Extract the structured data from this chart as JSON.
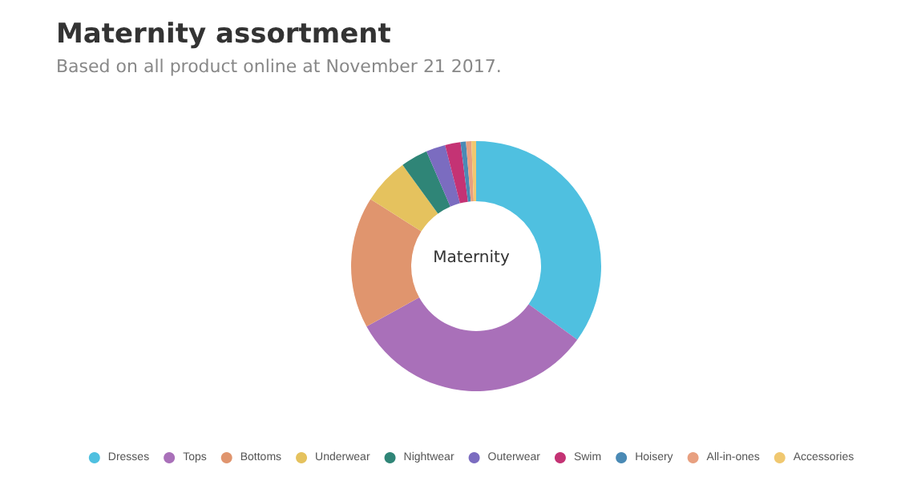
{
  "chart_data": {
    "type": "donut",
    "title": "Maternity assortment",
    "subtitle": "Based on all product online at November 21 2017.",
    "annotations": [
      "Maternity"
    ],
    "categories": [
      "Dresses",
      "Tops",
      "Bottoms",
      "Underwear",
      "Nightwear",
      "Outerwear",
      "Swim",
      "Hoisery",
      "All-in-ones",
      "Accessories"
    ],
    "values": [
      35,
      32,
      17,
      6,
      3.5,
      2.5,
      2,
      0.7,
      0.7,
      0.6
    ],
    "colors": [
      "#4fc0e0",
      "#a970b9",
      "#e0956e",
      "#e5c25e",
      "#2f8577",
      "#7b6cc0",
      "#c43374",
      "#4a8ab5",
      "#e8a080",
      "#f0c870"
    ],
    "legend": "bottom"
  }
}
